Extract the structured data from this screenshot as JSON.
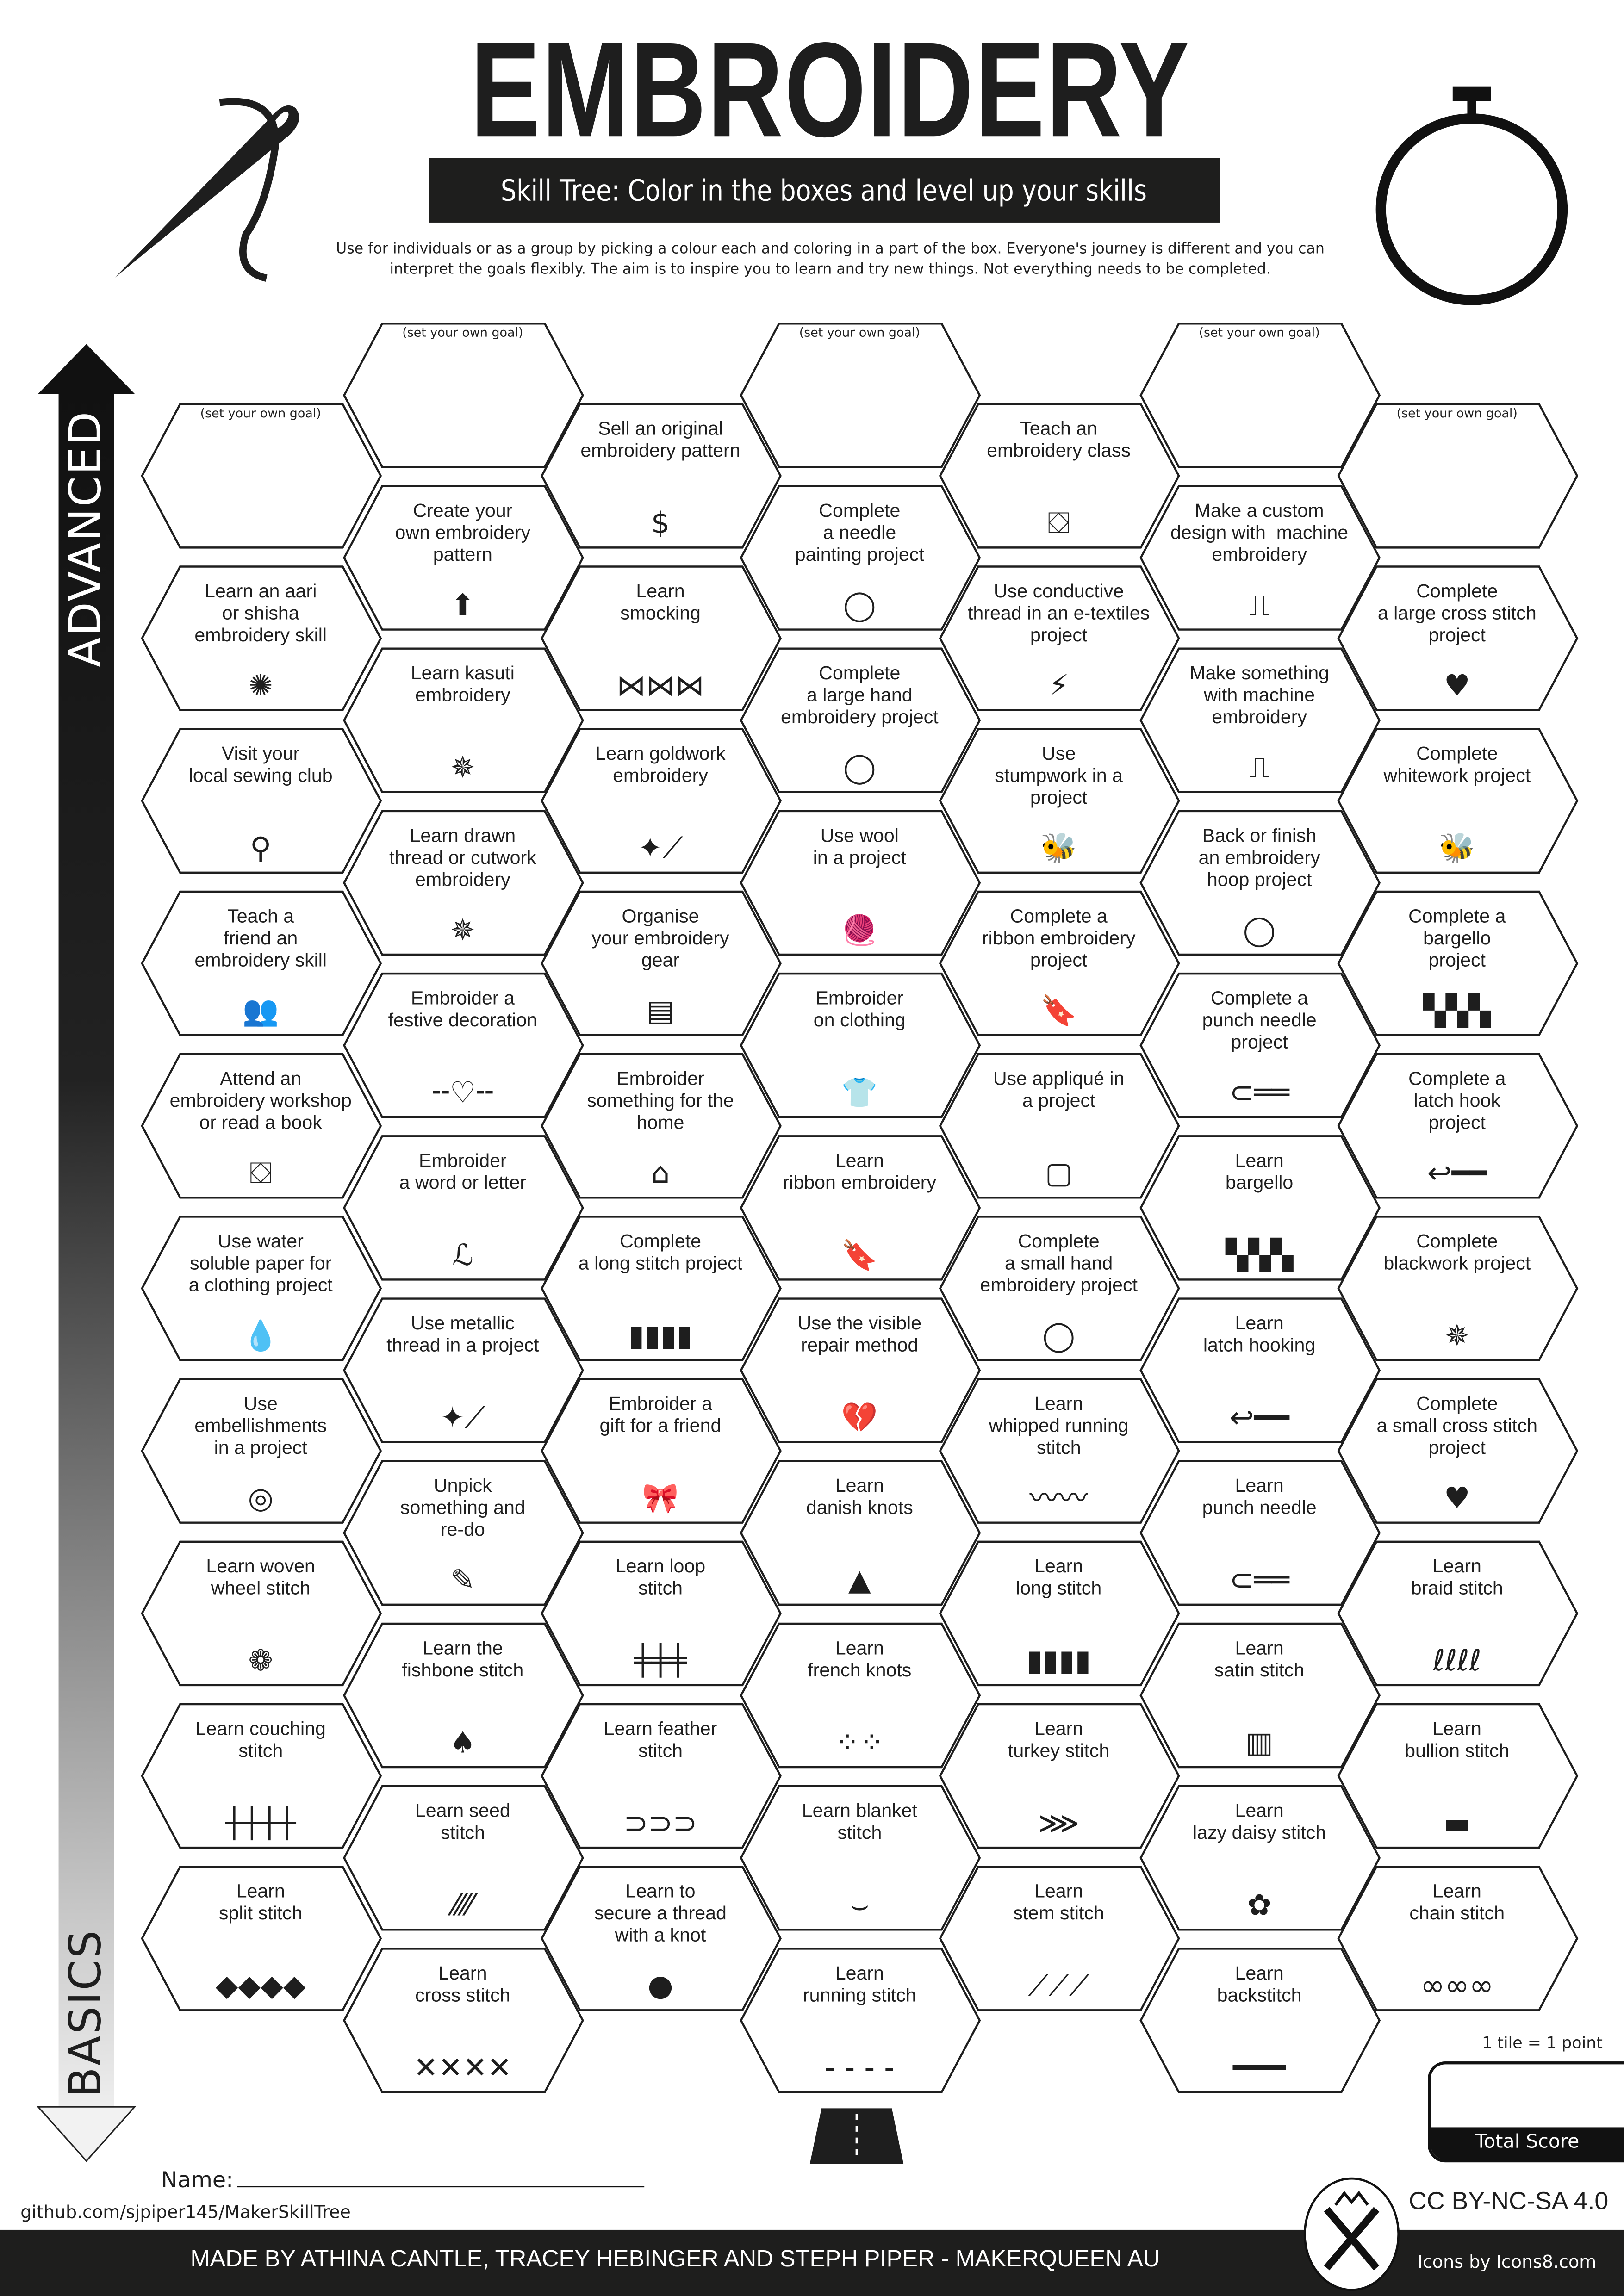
{
  "header": {
    "title": "EMBROIDERY",
    "subtitle": "Skill Tree:  Color in the boxes and level up your skills",
    "description_line1": "Use for individuals or as a group by picking a colour each and coloring in a part of the box.  Everyone's journey is different and you can",
    "description_line2": "interpret the goals flexibly.  The aim is to inspire you to learn and try new things. Not everything needs to be completed.",
    "left_icon": "needle-thread-icon",
    "right_icon": "embroidery-hoop-icon"
  },
  "axis": {
    "top": "ADVANCED",
    "bottom": "BASICS"
  },
  "columns": [
    [
      {
        "goal": "(set your own goal)"
      },
      {
        "label": "Learn an aari\nor shisha\nembroidery skill",
        "icon": "aari-hook-icon"
      },
      {
        "label": "Visit your\nlocal sewing club",
        "icon": "location-pin-icon"
      },
      {
        "label": "Teach a\nfriend an\nembroidery skill",
        "icon": "people-laptop-icon"
      },
      {
        "label": "Attend an\nembroidery workshop\nor read a book",
        "icon": "teacher-board-icon"
      },
      {
        "label": "Use water\nsoluble paper for\na clothing project",
        "icon": "water-drop-icon"
      },
      {
        "label": "Use\nembellishments\nin a project",
        "icon": "button-icon"
      },
      {
        "label": "Learn woven\nwheel stitch",
        "icon": "rose-icon"
      },
      {
        "label": "Learn couching\nstitch",
        "icon": "couching-line-icon"
      },
      {
        "label": "Learn\nsplit stitch",
        "icon": "split-stitch-icon"
      }
    ],
    [
      {
        "goal": "(set your own goal)"
      },
      {
        "label": "Create your\nown embroidery\npattern",
        "icon": "arrow-up-circle-icon"
      },
      {
        "label": "Learn kasuti\nembroidery",
        "icon": "star-flower-icon"
      },
      {
        "label": "Learn drawn\nthread or cutwork\nembroidery",
        "icon": "star-flower-icon"
      },
      {
        "label": "Embroider a\nfestive decoration",
        "icon": "dashed-heart-line-icon"
      },
      {
        "label": "Embroider\na word or letter",
        "icon": "letter-l-icon"
      },
      {
        "label": "Use metallic\nthread in a project",
        "icon": "sparkle-needle-icon"
      },
      {
        "label": "Unpick\nsomething and\nre-do",
        "icon": "seam-ripper-icon"
      },
      {
        "label": "Learn the\nfishbone stitch",
        "icon": "pinecone-icon"
      },
      {
        "label": "Learn seed\nstitch",
        "icon": "seed-stitch-icon"
      },
      {
        "label": "Learn\ncross stitch",
        "icon": "cross-stitch-icon"
      }
    ],
    [
      {
        "label": "Sell an original\nembroidery pattern",
        "icon": "dollar-circle-icon"
      },
      {
        "label": "Learn\nsmocking",
        "icon": "smocking-icon"
      },
      {
        "label": "Learn goldwork\nembroidery",
        "icon": "sparkle-needle-icon"
      },
      {
        "label": "Organise\nyour embroidery\ngear",
        "icon": "cabinet-icon"
      },
      {
        "label": "Embroider\nsomething for the\nhome",
        "icon": "house-icon"
      },
      {
        "label": "Complete\na long stitch project",
        "icon": "long-stitch-icon"
      },
      {
        "label": "Embroider a\ngift for a friend",
        "icon": "gift-bow-icon"
      },
      {
        "label": "Learn loop\nstitch",
        "icon": "loop-stitch-icon"
      },
      {
        "label": "Learn feather\nstitch",
        "icon": "feather-stitch-icon"
      },
      {
        "label": "Learn to\nsecure a thread\nwith a knot",
        "icon": "knot-dot-icon"
      }
    ],
    [
      {
        "goal": "(set your own goal)"
      },
      {
        "label": "Complete\na needle\npainting project",
        "icon": "hoop-icon"
      },
      {
        "label": "Complete\na large hand\nembroidery project",
        "icon": "hoop-icon"
      },
      {
        "label": "Use wool\nin a project",
        "icon": "yarn-ball-icon"
      },
      {
        "label": "Embroider\non clothing",
        "icon": "tshirt-icon"
      },
      {
        "label": "Learn\nribbon embroidery",
        "icon": "bookmark-ribbon-icon"
      },
      {
        "label": "Use the visible\nrepair method",
        "icon": "broken-heart-icon"
      },
      {
        "label": "Learn\ndanish knots",
        "icon": "triangle-icon"
      },
      {
        "label": "Learn\nfrench knots",
        "icon": "french-knots-icon"
      },
      {
        "label": "Learn blanket\nstitch",
        "icon": "blanket-stitch-icon"
      },
      {
        "label": "Learn\nrunning stitch",
        "icon": "running-stitch-icon"
      }
    ],
    [
      {
        "label": "Teach an\nembroidery class",
        "icon": "teacher-board-icon"
      },
      {
        "label": "Use conductive\nthread in an e-textiles\nproject",
        "icon": "led-bolt-icon"
      },
      {
        "label": "Use\nstumpwork in a\nproject",
        "icon": "bee-icon"
      },
      {
        "label": "Complete a\nribbon embroidery\nproject",
        "icon": "bookmark-ribbon-icon"
      },
      {
        "label": "Use appliqué in\na project",
        "icon": "patch-icon"
      },
      {
        "label": "Complete\na small hand\nembroidery project",
        "icon": "hoop-icon"
      },
      {
        "label": "Learn\nwhipped running\nstitch",
        "icon": "whipped-stitch-icon"
      },
      {
        "label": "Learn\nlong stitch",
        "icon": "long-stitch-icon"
      },
      {
        "label": "Learn\nturkey stitch",
        "icon": "turkey-stitch-icon"
      },
      {
        "label": "Learn\nstem stitch",
        "icon": "stem-stitch-icon"
      }
    ],
    [
      {
        "goal": "(set your own goal)"
      },
      {
        "label": "Make a custom\ndesign with  machine\nembroidery",
        "icon": "sewing-machine-icon"
      },
      {
        "label": "Make something\nwith machine\nembroidery",
        "icon": "sewing-machine-icon"
      },
      {
        "label": "Back or finish\nan embroidery\nhoop project",
        "icon": "hoop-icon"
      },
      {
        "label": "Complete a\npunch needle\nproject",
        "icon": "punch-needle-icon"
      },
      {
        "label": "Learn\nbargello",
        "icon": "bargello-icon"
      },
      {
        "label": "Learn\nlatch hooking",
        "icon": "latch-hook-icon"
      },
      {
        "label": "Learn\npunch needle",
        "icon": "punch-needle-icon"
      },
      {
        "label": "Learn\nsatin stitch",
        "icon": "satin-stitch-icon"
      },
      {
        "label": "Learn\nlazy daisy stitch",
        "icon": "flower-icon"
      },
      {
        "label": "Learn\nbackstitch",
        "icon": "backstitch-icon"
      }
    ],
    [
      {
        "goal": "(set your own goal)"
      },
      {
        "label": "Complete\na large cross stitch\nproject",
        "icon": "cross-stitch-heart-icon"
      },
      {
        "label": "Complete\nwhitework project",
        "icon": "bee-icon"
      },
      {
        "label": "Complete a\nbargello\nproject",
        "icon": "bargello-icon"
      },
      {
        "label": "Complete a\nlatch hook\nproject",
        "icon": "latch-hook-icon"
      },
      {
        "label": "Complete\nblackwork project",
        "icon": "star-flower-icon"
      },
      {
        "label": "Complete\na small cross stitch\nproject",
        "icon": "cross-stitch-heart-icon"
      },
      {
        "label": "Learn\nbraid stitch",
        "icon": "braid-stitch-icon"
      },
      {
        "label": "Learn\nbullion stitch",
        "icon": "bullion-stitch-icon"
      },
      {
        "label": "Learn\nchain stitch",
        "icon": "chain-stitch-icon"
      }
    ]
  ],
  "road_icon": "road-icon",
  "score": {
    "rule": "1 tile = 1 point",
    "label": "Total Score"
  },
  "name_label": "Name:",
  "github": "github.com/sjpiper145/MakerSkillTree",
  "license": "CC BY-NC-SA 4.0",
  "footer": {
    "credits": "MADE BY ATHINA CANTLE, TRACEY HEBINGER AND STEPH PIPER  -  MAKERQUEEN AU",
    "icons_credit": "Icons by Icons8.com",
    "logo": "makerqueen-logo"
  }
}
